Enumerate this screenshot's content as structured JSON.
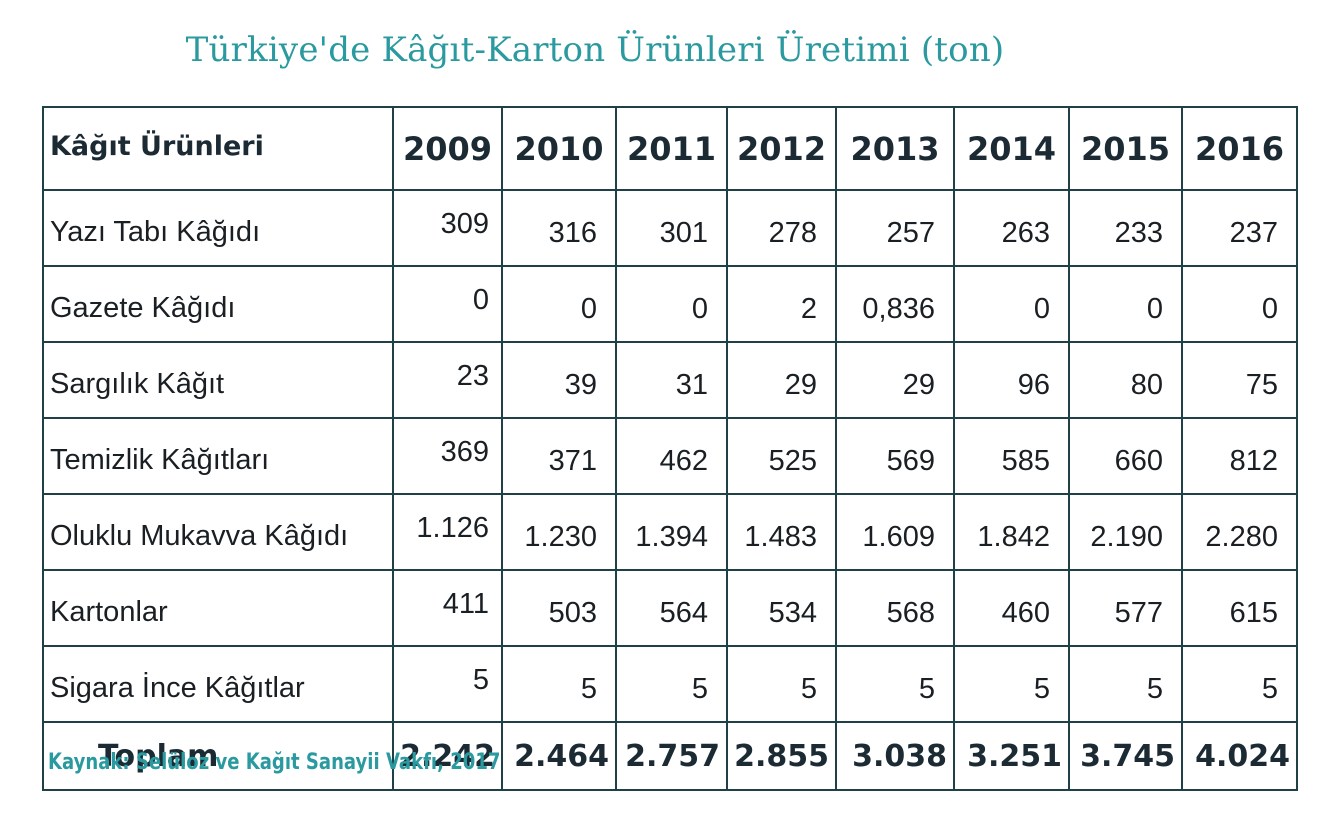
{
  "title": "Türkiye'de Kâğıt-Karton Ürünleri Üretimi (ton)",
  "source": "Kaynak: Selüloz ve Kağıt Sanayii Vakfı, 2017",
  "chart_data": {
    "type": "table",
    "title": "Türkiye'de Kâğıt-Karton Ürünleri Üretimi (ton)",
    "row_header": "Kâğıt Ürünleri",
    "years": [
      "2009",
      "2010",
      "2011",
      "2012",
      "2013",
      "2014",
      "2015",
      "2016"
    ],
    "rows": [
      {
        "name": "Yazı Tabı Kâğıdı",
        "values": [
          "309",
          "316",
          "301",
          "278",
          "257",
          "263",
          "233",
          "237"
        ]
      },
      {
        "name": "Gazete Kâğıdı",
        "values": [
          "0",
          "0",
          "0",
          "2",
          "0,836",
          "0",
          "0",
          "0"
        ]
      },
      {
        "name": "Sargılık Kâğıt",
        "values": [
          "23",
          "39",
          "31",
          "29",
          "29",
          "96",
          "80",
          "75"
        ]
      },
      {
        "name": "Temizlik Kâğıtları",
        "values": [
          "369",
          "371",
          "462",
          "525",
          "569",
          "585",
          "660",
          "812"
        ]
      },
      {
        "name": "Oluklu Mukavva Kâğıdı",
        "values": [
          "1.126",
          "1.230",
          "1.394",
          "1.483",
          "1.609",
          "1.842",
          "2.190",
          "2.280"
        ]
      },
      {
        "name": "Kartonlar",
        "values": [
          "411",
          "503",
          "564",
          "534",
          "568",
          "460",
          "577",
          "615"
        ]
      },
      {
        "name": "Sigara İnce Kâğıtlar",
        "values": [
          "5",
          "5",
          "5",
          "5",
          "5",
          "5",
          "5",
          "5"
        ]
      }
    ],
    "total": {
      "name": "Toplam",
      "values": [
        "2.242",
        "2.464",
        "2.757",
        "2.855",
        "3.038",
        "3.251",
        "3.745",
        "4.024"
      ]
    }
  }
}
